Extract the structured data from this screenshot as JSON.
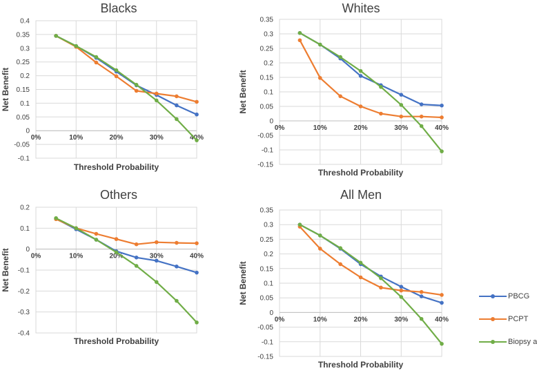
{
  "colors": {
    "PBCG": "#4472C4",
    "PCPT": "#ED7D31",
    "Biopsy all Men": "#70AD47",
    "grid": "#D9D9D9",
    "text": "#404040"
  },
  "legend": [
    {
      "name": "PBCG",
      "color": "#4472C4"
    },
    {
      "name": "PCPT",
      "color": "#ED7D31"
    },
    {
      "name": "Biopsy all Men",
      "color": "#70AD47"
    }
  ],
  "chart_data": [
    {
      "type": "line",
      "title": "Blacks",
      "xlabel": "Threshold  Probability",
      "ylabel": "Net Benefit",
      "x": [
        0.05,
        0.1,
        0.15,
        0.2,
        0.25,
        0.3,
        0.35,
        0.4
      ],
      "xticks": [
        "0%",
        "10%",
        "20%",
        "30%",
        "40%"
      ],
      "ylim": [
        -0.1,
        0.4
      ],
      "yticks": [
        "-0.1",
        "-0.05",
        "0",
        "0.05",
        "0.1",
        "0.15",
        "0.2",
        "0.25",
        "0.3",
        "0.35",
        "0.4"
      ],
      "series": [
        {
          "name": "PBCG",
          "values": [
            0.345,
            0.308,
            0.265,
            0.215,
            0.165,
            0.13,
            0.092,
            0.059
          ]
        },
        {
          "name": "PCPT",
          "values": [
            0.345,
            0.305,
            0.248,
            0.198,
            0.145,
            0.135,
            0.125,
            0.105
          ]
        },
        {
          "name": "Biopsy all Men",
          "values": [
            0.345,
            0.308,
            0.268,
            0.22,
            0.167,
            0.11,
            0.042,
            -0.035
          ]
        }
      ]
    },
    {
      "type": "line",
      "title": "Whites",
      "xlabel": "Threshold  Probability",
      "ylabel": "Net Benefit",
      "x": [
        0.05,
        0.1,
        0.15,
        0.2,
        0.25,
        0.3,
        0.35,
        0.4
      ],
      "xticks": [
        "0%",
        "10%",
        "20%",
        "30%",
        "40%"
      ],
      "ylim": [
        -0.15,
        0.35
      ],
      "yticks": [
        "-0.15",
        "-0.1",
        "-0.05",
        "0",
        "0.05",
        "0.1",
        "0.15",
        "0.2",
        "0.25",
        "0.3",
        "0.35"
      ],
      "series": [
        {
          "name": "PBCG",
          "values": [
            0.303,
            0.263,
            0.215,
            0.155,
            0.123,
            0.09,
            0.057,
            0.053
          ]
        },
        {
          "name": "PCPT",
          "values": [
            0.278,
            0.148,
            0.085,
            0.05,
            0.025,
            0.015,
            0.015,
            0.012
          ]
        },
        {
          "name": "Biopsy all Men",
          "values": [
            0.303,
            0.263,
            0.22,
            0.172,
            0.117,
            0.055,
            -0.018,
            -0.105
          ]
        }
      ]
    },
    {
      "type": "line",
      "title": "Others",
      "xlabel": "Threshold  Probability",
      "ylabel": "Net Benefit",
      "x": [
        0.05,
        0.1,
        0.15,
        0.2,
        0.25,
        0.3,
        0.35,
        0.4
      ],
      "xticks": [
        "0%",
        "10%",
        "20%",
        "30%",
        "40%"
      ],
      "ylim": [
        -0.4,
        0.2
      ],
      "yticks": [
        "-0.4",
        "-0.3",
        "-0.2",
        "-0.1",
        "0",
        "0.1",
        "0.2"
      ],
      "series": [
        {
          "name": "PBCG",
          "values": [
            0.145,
            0.095,
            0.045,
            -0.01,
            -0.04,
            -0.055,
            -0.083,
            -0.112
          ]
        },
        {
          "name": "PCPT",
          "values": [
            0.143,
            0.1,
            0.073,
            0.048,
            0.023,
            0.033,
            0.03,
            0.028
          ]
        },
        {
          "name": "Biopsy all Men",
          "values": [
            0.148,
            0.1,
            0.045,
            -0.015,
            -0.08,
            -0.157,
            -0.247,
            -0.35
          ]
        }
      ]
    },
    {
      "type": "line",
      "title": "All Men",
      "xlabel": "Threshold  Probability",
      "ylabel": "Net Benefit",
      "x": [
        0.05,
        0.1,
        0.15,
        0.2,
        0.25,
        0.3,
        0.35,
        0.4
      ],
      "xticks": [
        "0%",
        "10%",
        "20%",
        "30%",
        "40%"
      ],
      "ylim": [
        -0.15,
        0.35
      ],
      "yticks": [
        "-0.15",
        "-0.1",
        "-0.05",
        "0",
        "0.05",
        "0.1",
        "0.15",
        "0.2",
        "0.25",
        "0.3",
        "0.35"
      ],
      "series": [
        {
          "name": "PBCG",
          "values": [
            0.3,
            0.263,
            0.218,
            0.165,
            0.123,
            0.088,
            0.055,
            0.033
          ]
        },
        {
          "name": "PCPT",
          "values": [
            0.293,
            0.218,
            0.165,
            0.12,
            0.085,
            0.075,
            0.07,
            0.06
          ]
        },
        {
          "name": "Biopsy all Men",
          "values": [
            0.3,
            0.263,
            0.22,
            0.17,
            0.117,
            0.053,
            -0.022,
            -0.107
          ]
        }
      ]
    }
  ]
}
